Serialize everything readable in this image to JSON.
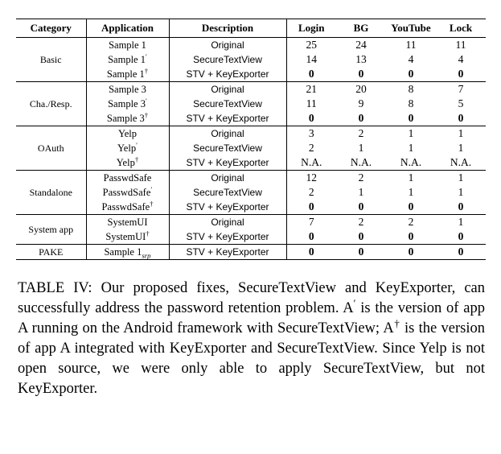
{
  "table": {
    "headers": [
      "Category",
      "Application",
      "Description",
      "Login",
      "BG",
      "YouTube",
      "Lock"
    ],
    "groups": [
      {
        "category": "Basic",
        "rows": [
          {
            "app": "Sample 1",
            "app_mark": "",
            "desc": "Original",
            "values": [
              "25",
              "24",
              "11",
              "11"
            ]
          },
          {
            "app": "Sample 1",
            "app_mark": "′",
            "desc": "SecureTextView",
            "values": [
              "14",
              "13",
              "4",
              "4"
            ]
          },
          {
            "app": "Sample 1",
            "app_mark": "†",
            "desc": "STV + KeyExporter",
            "values": [
              "0",
              "0",
              "0",
              "0"
            ]
          }
        ]
      },
      {
        "category": "Cha./Resp.",
        "rows": [
          {
            "app": "Sample 3",
            "app_mark": "",
            "desc": "Original",
            "values": [
              "21",
              "20",
              "8",
              "7"
            ]
          },
          {
            "app": "Sample 3",
            "app_mark": "′",
            "desc": "SecureTextView",
            "values": [
              "11",
              "9",
              "8",
              "5"
            ]
          },
          {
            "app": "Sample 3",
            "app_mark": "†",
            "desc": "STV + KeyExporter",
            "values": [
              "0",
              "0",
              "0",
              "0"
            ]
          }
        ]
      },
      {
        "category": "OAuth",
        "rows": [
          {
            "app": "Yelp",
            "app_mark": "",
            "desc": "Original",
            "values": [
              "3",
              "2",
              "1",
              "1"
            ]
          },
          {
            "app": "Yelp",
            "app_mark": "′",
            "desc": "SecureTextView",
            "values": [
              "2",
              "1",
              "1",
              "1"
            ]
          },
          {
            "app": "Yelp",
            "app_mark": "†",
            "desc": "STV + KeyExporter",
            "values": [
              "N.A.",
              "N.A.",
              "N.A.",
              "N.A."
            ]
          }
        ]
      },
      {
        "category": "Standalone",
        "rows": [
          {
            "app": "PasswdSafe",
            "app_mark": "",
            "desc": "Original",
            "values": [
              "12",
              "2",
              "1",
              "1"
            ]
          },
          {
            "app": "PasswdSafe",
            "app_mark": "′",
            "desc": "SecureTextView",
            "values": [
              "2",
              "1",
              "1",
              "1"
            ]
          },
          {
            "app": "PasswdSafe",
            "app_mark": "†",
            "desc": "STV + KeyExporter",
            "values": [
              "0",
              "0",
              "0",
              "0"
            ]
          }
        ]
      },
      {
        "category": "System app",
        "rows": [
          {
            "app": "SystemUI",
            "app_mark": "",
            "desc": "Original",
            "values": [
              "7",
              "2",
              "2",
              "1"
            ]
          },
          {
            "app": "SystemUI",
            "app_mark": "†",
            "desc": "STV + KeyExporter",
            "values": [
              "0",
              "0",
              "0",
              "0"
            ]
          }
        ]
      },
      {
        "category": "PAKE",
        "rows": [
          {
            "app": "Sample 1",
            "app_mark": "",
            "app_sub": "srp",
            "desc": "STV + KeyExporter",
            "values": [
              "0",
              "0",
              "0",
              "0"
            ]
          }
        ]
      }
    ]
  },
  "caption": {
    "label": "TABLE IV:",
    "text_1": "Our proposed fixes, SecureTextView and KeyExporter, can successfully address the password retention problem. A",
    "mark_1": "′",
    "text_2": " is the version of app A running on the Android framework with SecureTextView; A",
    "mark_2": "†",
    "text_3": " is the version of app A integrated with KeyExporter and SecureTextView. Since Yelp is not open source, we were only able to apply SecureTextView, but not KeyExporter."
  }
}
